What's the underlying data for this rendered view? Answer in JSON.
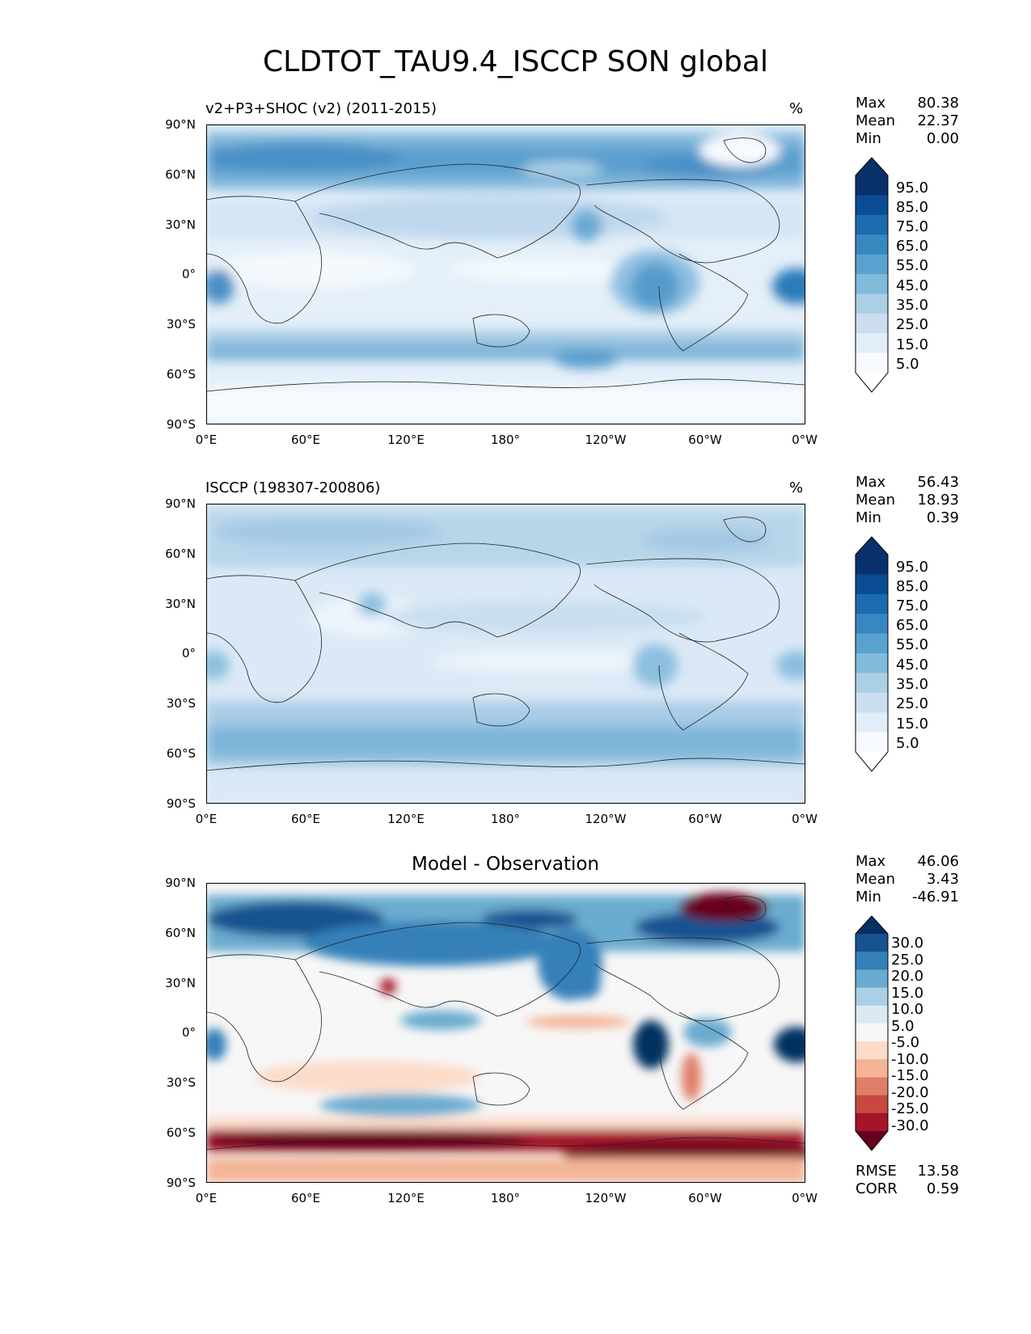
{
  "title": "CLDTOT_TAU9.4_ISCCP SON global",
  "x_ticks": [
    "0°E",
    "60°E",
    "120°E",
    "180°",
    "120°W",
    "60°W",
    "0°W"
  ],
  "y_ticks": [
    "90°N",
    "60°N",
    "30°N",
    "0°",
    "30°S",
    "60°S",
    "90°S"
  ],
  "panels": [
    {
      "left_title": "v2+P3+SHOC (v2) (2011-2015)",
      "unit": "%",
      "stats": {
        "max_label": "Max",
        "max": "80.38",
        "mean_label": "Mean",
        "mean": "22.37",
        "min_label": "Min",
        "min": "0.00"
      },
      "colorbar_labels": [
        "95.0",
        "85.0",
        "75.0",
        "65.0",
        "55.0",
        "45.0",
        "35.0",
        "25.0",
        "15.0",
        "5.0"
      ]
    },
    {
      "left_title": "ISCCP (198307-200806)",
      "unit": "%",
      "stats": {
        "max_label": "Max",
        "max": "56.43",
        "mean_label": "Mean",
        "mean": "18.93",
        "min_label": "Min",
        "min": "0.39"
      },
      "colorbar_labels": [
        "95.0",
        "85.0",
        "75.0",
        "65.0",
        "55.0",
        "45.0",
        "35.0",
        "25.0",
        "15.0",
        "5.0"
      ]
    },
    {
      "center_title": "Model - Observation",
      "stats": {
        "max_label": "Max",
        "max": "46.06",
        "mean_label": "Mean",
        "mean": "3.43",
        "min_label": "Min",
        "min": "-46.91"
      },
      "colorbar_labels": [
        "30.0",
        "25.0",
        "20.0",
        "15.0",
        "10.0",
        "5.0",
        "-5.0",
        "-10.0",
        "-15.0",
        "-20.0",
        "-25.0",
        "-30.0"
      ],
      "error_stats": {
        "rmse_label": "RMSE",
        "rmse": "13.58",
        "corr_label": "CORR",
        "corr": "0.59"
      }
    }
  ],
  "colors": {
    "blues": [
      "#f7fbff",
      "#e1edf8",
      "#cadef0",
      "#abcfe5",
      "#82badb",
      "#59a1cf",
      "#3787c0",
      "#1c6aaf",
      "#0b4d94",
      "#08306b"
    ],
    "diverging": [
      "#67001f",
      "#a51429",
      "#c94741",
      "#e07f68",
      "#f4b497",
      "#fcdbc9",
      "#f7f7f7",
      "#dbeaf2",
      "#a9d0e5",
      "#6aaccf",
      "#3480b9",
      "#175290",
      "#053061"
    ]
  }
}
